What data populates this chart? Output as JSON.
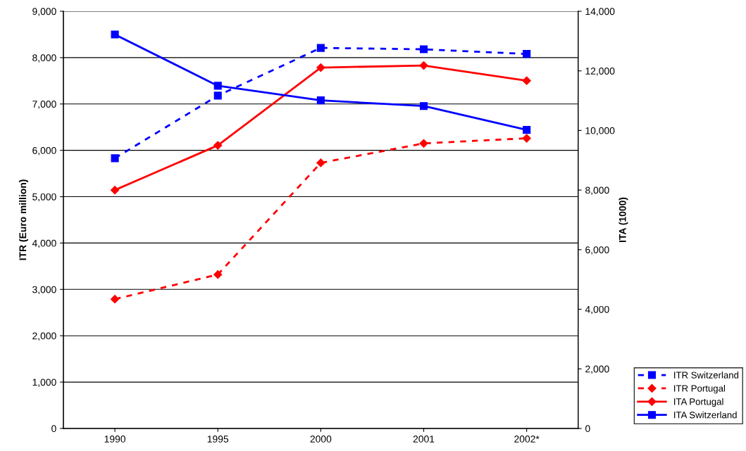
{
  "chart_data": {
    "type": "line",
    "ylabel": "ITR (Euro million)",
    "y2label": "ITA (1000)",
    "categories": [
      "1990",
      "1995",
      "2000",
      "2001",
      "2002*"
    ],
    "series": [
      {
        "name": "ITR Switzerland",
        "color": "#0000ff",
        "values": [
          5830,
          7180,
          8210,
          8180,
          8080
        ],
        "marker": "square",
        "line_style": "dashed"
      },
      {
        "name": "ITR Portugal",
        "color": "#ff0000",
        "values": [
          2790,
          3320,
          5730,
          6150,
          6260
        ],
        "marker": "diamond",
        "line_style": "dashed"
      },
      {
        "name": "ITA Portugal",
        "color": "#ff0000",
        "values": [
          8000,
          9500,
          12110,
          12180,
          11670
        ],
        "marker": "diamond",
        "line_style": "solid",
        "axis": "y2"
      },
      {
        "name": "ITA Switzerland",
        "color": "#0000ff",
        "values": [
          13220,
          11500,
          11010,
          10820,
          10020
        ],
        "marker": "square",
        "line_style": "solid",
        "axis": "y2"
      }
    ],
    "ylim": [
      0,
      9000
    ],
    "yticks": [
      {
        "value": 0,
        "label": "0"
      },
      {
        "value": 1000,
        "label": "1,000"
      },
      {
        "value": 2000,
        "label": "2,000"
      },
      {
        "value": 3000,
        "label": "3,000"
      },
      {
        "value": 4000,
        "label": "4,000"
      },
      {
        "value": 5000,
        "label": "5,000"
      },
      {
        "value": 6000,
        "label": "6,000"
      },
      {
        "value": 7000,
        "label": "7,000"
      },
      {
        "value": 8000,
        "label": "8,000"
      },
      {
        "value": 9000,
        "label": "9,000"
      }
    ],
    "y2lim": [
      0,
      14000
    ],
    "y2ticks": [
      {
        "value": 0,
        "label": "0"
      },
      {
        "value": 2000,
        "label": "2,000"
      },
      {
        "value": 4000,
        "label": "4,000"
      },
      {
        "value": 6000,
        "label": "6,000"
      },
      {
        "value": 8000,
        "label": "8,000"
      },
      {
        "value": 10000,
        "label": "10,000"
      },
      {
        "value": 12000,
        "label": "12,000"
      },
      {
        "value": 14000,
        "label": "14,000"
      }
    ],
    "grid": "y",
    "legend": "bottom right"
  }
}
